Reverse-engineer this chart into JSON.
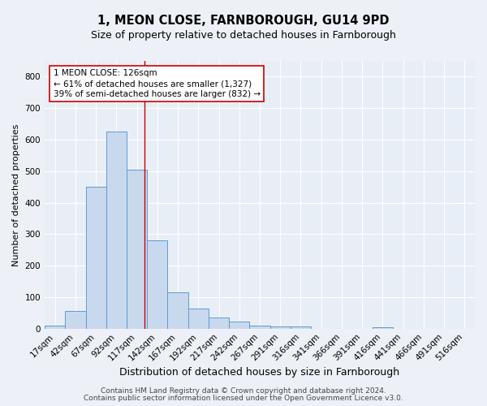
{
  "title1": "1, MEON CLOSE, FARNBOROUGH, GU14 9PD",
  "title2": "Size of property relative to detached houses in Farnborough",
  "xlabel": "Distribution of detached houses by size in Farnborough",
  "ylabel": "Number of detached properties",
  "bin_labels": [
    "17sqm",
    "42sqm",
    "67sqm",
    "92sqm",
    "117sqm",
    "142sqm",
    "167sqm",
    "192sqm",
    "217sqm",
    "242sqm",
    "267sqm",
    "291sqm",
    "316sqm",
    "341sqm",
    "366sqm",
    "391sqm",
    "416sqm",
    "441sqm",
    "466sqm",
    "491sqm",
    "516sqm"
  ],
  "bar_values": [
    10,
    55,
    450,
    625,
    505,
    280,
    115,
    63,
    35,
    22,
    10,
    7,
    7,
    0,
    0,
    0,
    5,
    0,
    0,
    0,
    0
  ],
  "bar_color": "#c9d9ed",
  "bar_edgecolor": "#5b9bd5",
  "background_color": "#e8eef6",
  "fig_background_color": "#edf1f7",
  "grid_color": "#ffffff",
  "vline_x": 4.36,
  "vline_color": "#cc0000",
  "annotation_line1": "1 MEON CLOSE: 126sqm",
  "annotation_line2": "← 61% of detached houses are smaller (1,327)",
  "annotation_line3": "39% of semi-detached houses are larger (832) →",
  "ylim": [
    0,
    850
  ],
  "yticks": [
    0,
    100,
    200,
    300,
    400,
    500,
    600,
    700,
    800
  ],
  "footer1": "Contains HM Land Registry data © Crown copyright and database right 2024.",
  "footer2": "Contains public sector information licensed under the Open Government Licence v3.0.",
  "title1_fontsize": 10.5,
  "title2_fontsize": 9,
  "xlabel_fontsize": 9,
  "ylabel_fontsize": 8,
  "tick_fontsize": 7.5,
  "annotation_fontsize": 7.5,
  "footer_fontsize": 6.5
}
